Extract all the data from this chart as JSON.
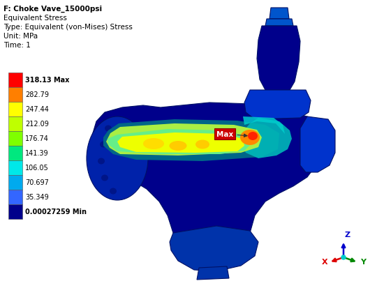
{
  "title_lines": [
    [
      "F: Choke Vave_15000psi",
      "bold"
    ],
    [
      "Equivalent Stress",
      "normal"
    ],
    [
      "Type: Equivalent (von-Mises) Stress",
      "normal"
    ],
    [
      "Unit: MPa",
      "normal"
    ],
    [
      "Time: 1",
      "normal"
    ]
  ],
  "colorbar_labels": [
    "318.13 Max",
    "282.79",
    "247.44",
    "212.09",
    "176.74",
    "141.39",
    "106.05",
    "70.697",
    "35.349",
    "0.00027259 Min"
  ],
  "colorbar_colors": [
    "#ff0000",
    "#ff7f00",
    "#ffff00",
    "#bfff00",
    "#7fff00",
    "#00e87f",
    "#00e8e8",
    "#00aaee",
    "#3366ff",
    "#00008b"
  ],
  "max_label": "Max",
  "bg_color": "#ffffff",
  "axis_x_color": "#dd0000",
  "axis_y_color": "#008800",
  "axis_z_color": "#0000cc",
  "axis_center_color": "#00cccc",
  "figsize": [
    5.5,
    4.14
  ],
  "dpi": 100
}
